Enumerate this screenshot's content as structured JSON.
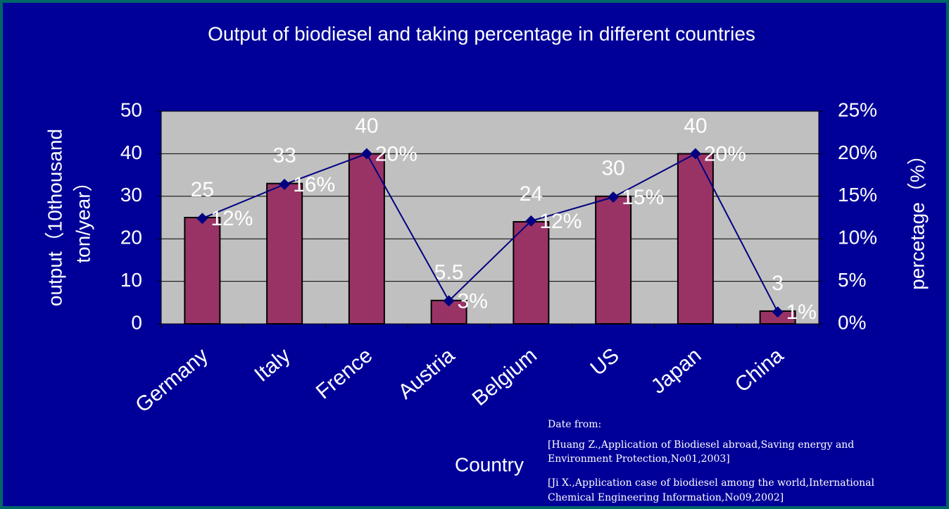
{
  "chart_data": {
    "type": "bar_line",
    "title": "Output of biodiesel and taking percentage in different countries",
    "x_label": "Country",
    "y_label": [
      "output（10thousand",
      "ton/year）"
    ],
    "y2_label": "percetage（%）",
    "categories": [
      "Germany",
      "Italy",
      "Frence",
      "Austria",
      "Belgium",
      "US",
      "Japan",
      "China"
    ],
    "series": [
      {
        "name": "output",
        "type": "bar",
        "color": "#993366",
        "values": [
          25,
          33,
          40,
          5.5,
          24,
          30,
          40,
          3
        ]
      },
      {
        "name": "percentage",
        "type": "line",
        "axis": "y2",
        "color": "#000080",
        "values": [
          12.4,
          16.4,
          20,
          2.7,
          12.1,
          14.9,
          20,
          1.4
        ],
        "value_labels": [
          "12%",
          "16%",
          "20%",
          "3%",
          "12%",
          "15%",
          "20%",
          "1%"
        ]
      }
    ],
    "ylim": [
      0,
      50
    ],
    "yticks": [
      0,
      10,
      20,
      30,
      40,
      50
    ],
    "y2lim": [
      0,
      25
    ],
    "y2ticks": [
      {
        "value": 0,
        "label": "0%"
      },
      {
        "value": 5,
        "label": "5%"
      },
      {
        "value": 10,
        "label": "10%"
      },
      {
        "value": 15,
        "label": "15%"
      },
      {
        "value": 20,
        "label": "20%"
      },
      {
        "value": 25,
        "label": "25%"
      }
    ],
    "grid": true,
    "notes": [
      "Date from:",
      "[Huang Z.,Application of Biodiesel abroad,Saving energy and",
      "Environment Protection,No01,2003]",
      "[Ji X.,Application case of biodiesel among the world,International",
      "Chemical Engineering Information,No09,2002]"
    ]
  }
}
